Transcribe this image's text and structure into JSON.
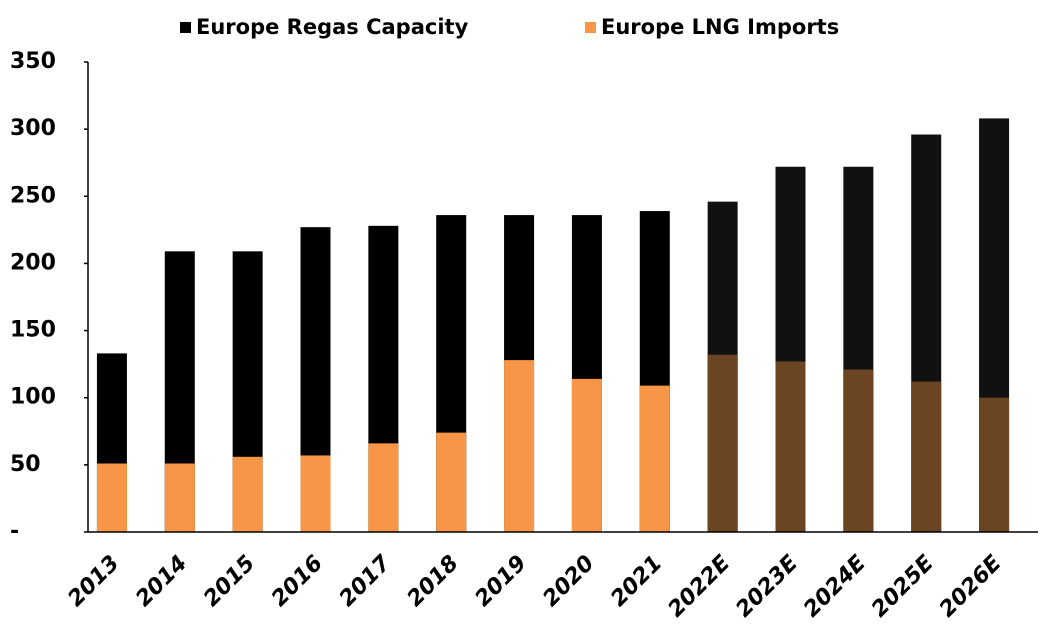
{
  "chart_data": {
    "type": "bar",
    "categories": [
      "2013",
      "2014",
      "2015",
      "2016",
      "2017",
      "2018",
      "2019",
      "2020",
      "2021",
      "2022E",
      "2023E",
      "2024E",
      "2025E",
      "2026E"
    ],
    "series": [
      {
        "name": "Europe Regas Capacity",
        "color": "#000000",
        "colors": [
          "#000000",
          "#000000",
          "#000000",
          "#000000",
          "#000000",
          "#000000",
          "#000000",
          "#000000",
          "#000000",
          "#111111",
          "#111111",
          "#111111",
          "#111111",
          "#111111"
        ],
        "values": [
          133,
          209,
          209,
          227,
          228,
          236,
          236,
          236,
          239,
          246,
          272,
          272,
          296,
          308
        ]
      },
      {
        "name": "Europe LNG Imports",
        "color": "#f79646",
        "colors": [
          "#f79646",
          "#f79646",
          "#f79646",
          "#f79646",
          "#f79646",
          "#f79646",
          "#f79646",
          "#f79646",
          "#f79646",
          "#6b4522",
          "#6b4522",
          "#6b4522",
          "#6b4522",
          "#6b4522"
        ],
        "values": [
          51,
          51,
          56,
          57,
          66,
          74,
          128,
          114,
          109,
          132,
          127,
          121,
          112,
          100
        ]
      }
    ],
    "ylim": [
      0,
      350
    ],
    "yticks": [
      {
        "value": 0,
        "label": "-"
      },
      50,
      100,
      150,
      200,
      250,
      300,
      350
    ],
    "grid": false,
    "overlap": true,
    "legend": "top"
  }
}
